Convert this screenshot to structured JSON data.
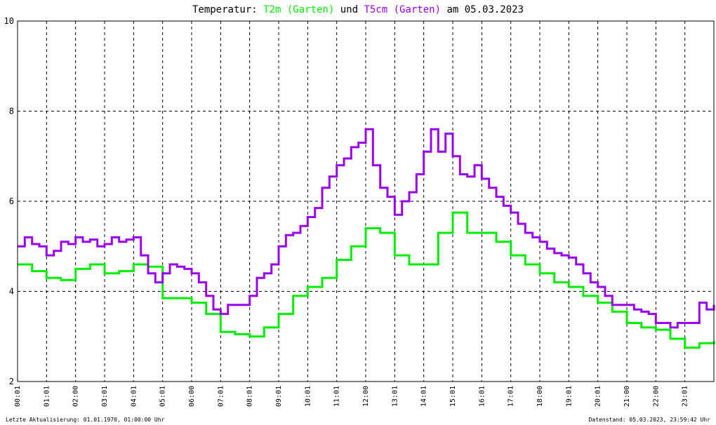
{
  "chart_data": {
    "type": "line",
    "title": {
      "prefix": "Temperatur: ",
      "series1_label": "T2m (Garten)",
      "connector": " und ",
      "series2_label": "T5cm (Garten)",
      "suffix": " am 05.03.2023"
    },
    "ylim": [
      2,
      10
    ],
    "y_ticks": [
      "10",
      "8",
      "6",
      "4",
      "2"
    ],
    "x_ticks": [
      "00:01",
      "01:01",
      "02:00",
      "03:01",
      "04:01",
      "05:01",
      "06:00",
      "07:01",
      "08:01",
      "09:01",
      "10:01",
      "11:01",
      "12:00",
      "13:01",
      "14:01",
      "15:01",
      "16:01",
      "17:01",
      "18:00",
      "19:01",
      "20:01",
      "21:00",
      "22:00",
      "23:01"
    ],
    "x_unit": "hours",
    "x_range": [
      0,
      24
    ],
    "grid": true,
    "series": [
      {
        "name": "T2m (Garten)",
        "color": "#00ee00",
        "x": [
          0,
          0.5,
          1,
          1.5,
          2,
          2.5,
          3,
          3.5,
          4,
          4.5,
          5,
          5.5,
          6,
          6.5,
          7,
          7.5,
          8,
          8.5,
          9,
          9.5,
          10,
          10.5,
          11,
          11.5,
          12,
          12.5,
          13,
          13.5,
          14,
          14.5,
          15,
          15.5,
          16,
          16.5,
          17,
          17.5,
          18,
          18.5,
          19,
          19.5,
          20,
          20.5,
          21,
          21.5,
          22,
          22.5,
          23,
          23.5,
          24
        ],
        "values": [
          4.6,
          4.45,
          4.3,
          4.25,
          4.5,
          4.6,
          4.4,
          4.45,
          4.6,
          4.55,
          3.85,
          3.85,
          3.75,
          3.5,
          3.1,
          3.05,
          3.0,
          3.2,
          3.5,
          3.9,
          4.1,
          4.3,
          4.7,
          5.0,
          5.4,
          5.3,
          4.8,
          4.6,
          4.6,
          5.3,
          5.75,
          5.3,
          5.3,
          5.1,
          4.8,
          4.6,
          4.4,
          4.2,
          4.1,
          3.9,
          3.75,
          3.55,
          3.3,
          3.2,
          3.15,
          2.95,
          2.75,
          2.85,
          2.9
        ]
      },
      {
        "name": "T5cm (Garten)",
        "color": "#9900ee",
        "x": [
          0,
          0.25,
          0.5,
          0.75,
          1,
          1.25,
          1.5,
          1.75,
          2,
          2.25,
          2.5,
          2.75,
          3,
          3.25,
          3.5,
          3.75,
          4,
          4.25,
          4.5,
          4.75,
          5,
          5.25,
          5.5,
          5.75,
          6,
          6.25,
          6.5,
          6.75,
          7,
          7.25,
          7.5,
          7.75,
          8,
          8.25,
          8.5,
          8.75,
          9,
          9.25,
          9.5,
          9.75,
          10,
          10.25,
          10.5,
          10.75,
          11,
          11.25,
          11.5,
          11.75,
          12,
          12.25,
          12.5,
          12.75,
          13,
          13.25,
          13.5,
          13.75,
          14,
          14.25,
          14.5,
          14.75,
          15,
          15.25,
          15.5,
          15.75,
          16,
          16.25,
          16.5,
          16.75,
          17,
          17.25,
          17.5,
          17.75,
          18,
          18.25,
          18.5,
          18.75,
          19,
          19.25,
          19.5,
          19.75,
          20,
          20.25,
          20.5,
          20.75,
          21,
          21.25,
          21.5,
          21.75,
          22,
          22.25,
          22.5,
          22.75,
          23,
          23.25,
          23.5,
          23.75,
          24
        ],
        "values": [
          5.0,
          5.2,
          5.05,
          5.0,
          4.8,
          4.9,
          5.1,
          5.05,
          5.2,
          5.1,
          5.15,
          5.0,
          5.05,
          5.2,
          5.1,
          5.15,
          5.2,
          4.8,
          4.4,
          4.2,
          4.4,
          4.6,
          4.55,
          4.5,
          4.4,
          4.2,
          3.9,
          3.6,
          3.5,
          3.7,
          3.7,
          3.7,
          3.9,
          4.3,
          4.4,
          4.6,
          5.0,
          5.25,
          5.3,
          5.45,
          5.65,
          5.85,
          6.3,
          6.55,
          6.8,
          6.95,
          7.2,
          7.3,
          7.6,
          6.8,
          6.3,
          6.1,
          5.7,
          6.0,
          6.2,
          6.6,
          7.1,
          7.6,
          7.1,
          7.5,
          7.0,
          6.6,
          6.55,
          6.8,
          6.5,
          6.3,
          6.1,
          5.9,
          5.75,
          5.5,
          5.3,
          5.2,
          5.1,
          4.95,
          4.85,
          4.8,
          4.75,
          4.6,
          4.4,
          4.2,
          4.1,
          3.9,
          3.7,
          3.7,
          3.7,
          3.6,
          3.55,
          3.5,
          3.3,
          3.3,
          3.2,
          3.3,
          3.3,
          3.3,
          3.75,
          3.6,
          3.7
        ]
      }
    ]
  },
  "footer": {
    "left": "Letzte Aktualisierung: 01.01.1970, 01:00:00 Uhr",
    "right": "Datenstand: 05.03.2023, 23:59:42 Uhr"
  }
}
